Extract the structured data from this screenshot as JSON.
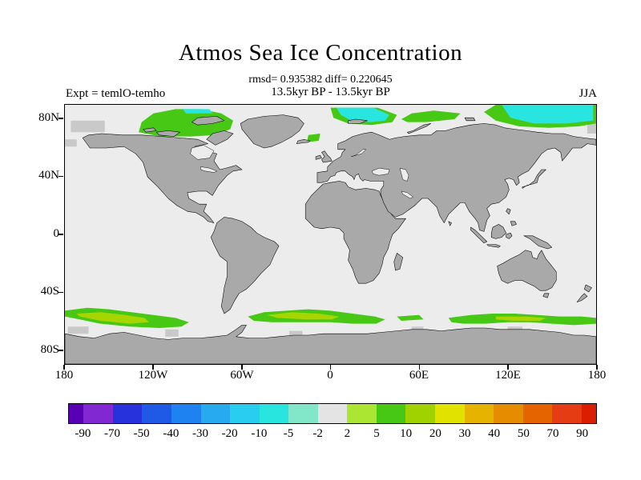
{
  "title": "Atmos Sea Ice Concentration",
  "annotations": {
    "stats": "rmsd= 0.935382 diff= 0.220645",
    "period": "13.5kyr BP - 13.5kyr BP",
    "experiment": "Expt = temlO-temho",
    "season": "JJA"
  },
  "axes": {
    "y_ticks": [
      "80N",
      "40N",
      "0",
      "40S",
      "80S"
    ],
    "x_ticks": [
      "180",
      "120W",
      "60W",
      "0",
      "60E",
      "120E",
      "180"
    ]
  },
  "colorbar": {
    "tick_labels": [
      "-90",
      "-70",
      "-50",
      "-40",
      "-30",
      "-20",
      "-10",
      "-5",
      "-2",
      "2",
      "5",
      "10",
      "20",
      "30",
      "40",
      "50",
      "70",
      "90"
    ],
    "colors": [
      "#5a00b4",
      "#8228d2",
      "#2832dc",
      "#1e5ae6",
      "#1e82f0",
      "#28aaf0",
      "#28cdf0",
      "#28e6df",
      "#82e6c8",
      "#e4e4e4",
      "#aae632",
      "#46c814",
      "#a0d200",
      "#e2e200",
      "#e6b400",
      "#e68c00",
      "#e66400",
      "#e63c14",
      "#dc1e00"
    ]
  },
  "map_colors": {
    "ocean": "#ececec",
    "land": "#a9a9a9",
    "partial_cell": "#c9c9c9",
    "positive_anomaly": "#46c814",
    "positive_core": "#a8d400",
    "negative_anomaly": "#28e6df"
  },
  "chart_data": {
    "type": "heatmap",
    "title": "Atmos Sea Ice Concentration",
    "subtitle": "13.5kyr BP - 13.5kyr BP",
    "stats": {
      "rmsd": 0.935382,
      "diff": 0.220645
    },
    "season": "JJA",
    "experiment_difference": "temlO-temho",
    "projection": "equirectangular world map",
    "lon_range": [
      -180,
      180
    ],
    "lat_range": [
      -90,
      90
    ],
    "x_tick_labels": [
      "180",
      "120W",
      "60W",
      "0",
      "60E",
      "120E",
      "180"
    ],
    "y_tick_labels": [
      "80N",
      "40N",
      "0",
      "40S",
      "80S"
    ],
    "contour_levels": [
      -90,
      -70,
      -50,
      -40,
      -30,
      -20,
      -10,
      -5,
      -2,
      2,
      5,
      10,
      20,
      30,
      40,
      50,
      70,
      90
    ],
    "colorbar_position": "horizontal, below map",
    "background_field": "near zero (-2 to 2, light gray) over most oceans; land masked gray",
    "anomaly_regions": [
      {
        "region": "Arctic Ocean over/north of Canadian Archipelago, 68N-87N, 130W-64W",
        "sign": "positive",
        "value_range": "2 to 10"
      },
      {
        "region": "Arctic Ocean north of Svalbard / Barents Sea, 76N-88N, 0E-45E",
        "sign": "negative core with green rim",
        "value_range": "-10 to 10"
      },
      {
        "region": "Arctic Ocean 78N-86N, 48E-88E",
        "sign": "positive",
        "value_range": "2 to 10"
      },
      {
        "region": "Arctic Ocean 74N-90N, 104E-180E",
        "sign": "negative core with positive rim",
        "value_range": "-10 to 10"
      },
      {
        "region": "Greenland Sea near Iceland, 64N-70N, 16W-7W",
        "sign": "positive",
        "value_range": "2 to 10"
      },
      {
        "region": "Southern Ocean Pacific sector, 51S-65S, 180W-96W",
        "sign": "positive",
        "value_range": "2 to 20 (yellow-green core)"
      },
      {
        "region": "Southern Ocean Atlantic sector, 52S-62S, 56W-37E",
        "sign": "positive",
        "value_range": "2 to 20 (yellow-green core)"
      },
      {
        "region": "Southern Ocean Indian/Pacific sector, 55S-63S, 80E-180E",
        "sign": "positive",
        "value_range": "2 to 10"
      }
    ]
  }
}
